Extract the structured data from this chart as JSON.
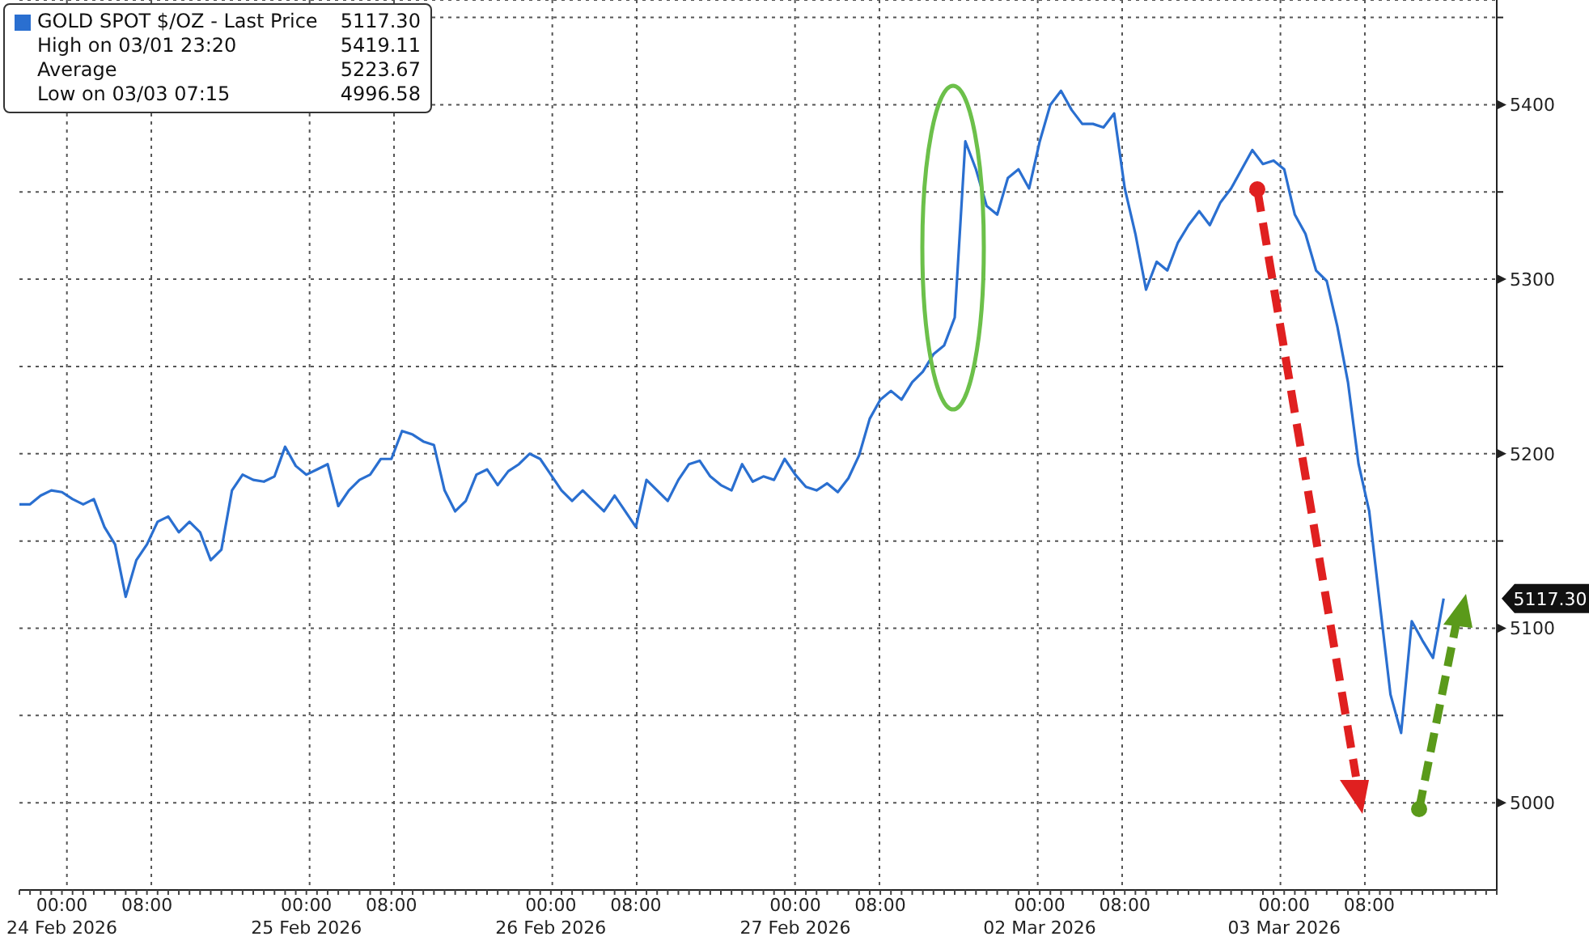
{
  "chart_data": {
    "type": "line",
    "categories": [
      null,
      null,
      null,
      null,
      "00:00\n24 Feb 2026",
      null,
      null,
      null,
      null,
      null,
      null,
      null,
      "08:00",
      null,
      null,
      null,
      null,
      null,
      null,
      null,
      null,
      null,
      null,
      null,
      null,
      null,
      null,
      "00:00\n25 Feb 2026",
      null,
      null,
      null,
      null,
      null,
      null,
      null,
      "08:00",
      null,
      null,
      null,
      null,
      null,
      null,
      null,
      null,
      null,
      null,
      null,
      null,
      null,
      null,
      "00:00\n26 Feb 2026",
      null,
      null,
      null,
      null,
      null,
      null,
      null,
      "08:00",
      null,
      null,
      null,
      null,
      null,
      null,
      null,
      null,
      null,
      null,
      null,
      null,
      null,
      null,
      "00:00\n27 Feb 2026",
      null,
      null,
      null,
      null,
      null,
      null,
      null,
      "08:00",
      null,
      null,
      null,
      null,
      null,
      null,
      null,
      null,
      null,
      null,
      null,
      null,
      null,
      null,
      "00:00\n02 Mar 2026",
      null,
      null,
      null,
      null,
      null,
      null,
      null,
      "08:00",
      null,
      null,
      null,
      null,
      null,
      null,
      null,
      null,
      null,
      null,
      null,
      null,
      null,
      null,
      "00:00\n03 Mar 2026",
      null,
      null,
      null,
      null,
      null,
      null,
      null,
      "08:00",
      null,
      null,
      null,
      null,
      null,
      null,
      null,
      null,
      null,
      null,
      null,
      null
    ],
    "series": [
      {
        "name": "GOLD SPOT $/OZ - Last Price",
        "color": "#2a6fd0",
        "values": [
          5171,
          5171,
          5176,
          5179,
          5178,
          5174,
          5171,
          5174,
          5158,
          5148,
          5118,
          5139,
          5148,
          5161,
          5164,
          5155,
          5161,
          5155,
          5139,
          5145,
          5179,
          5188,
          5185,
          5184,
          5187,
          5204,
          5193,
          5188,
          5191,
          5194,
          5170,
          5179,
          5185,
          5188,
          5197,
          5197,
          5213,
          5211,
          5207,
          5205,
          5179,
          5167,
          5173,
          5188,
          5191,
          5182,
          5190,
          5194,
          5200,
          5197,
          5188,
          5179,
          5173,
          5179,
          5173,
          5167,
          5176,
          5167,
          5158,
          5185,
          5179,
          5173,
          5185,
          5194,
          5196,
          5187,
          5182,
          5179,
          5194,
          5184,
          5187,
          5185,
          5197,
          5188,
          5181,
          5179,
          5183,
          5178,
          5186,
          5199,
          5220,
          5231,
          5236,
          5231,
          5241,
          5247,
          5257,
          5262,
          5278,
          5379,
          5363,
          5342,
          5337,
          5358,
          5363,
          5352,
          5379,
          5400,
          5408,
          5397,
          5389,
          5389,
          5387,
          5395,
          5352,
          5326,
          5294,
          5310,
          5305,
          5321,
          5331,
          5339,
          5331,
          5344,
          5352,
          5363,
          5374,
          5366,
          5368,
          5363,
          5337,
          5326,
          5305,
          5299,
          5273,
          5241,
          5194,
          5167,
          5114,
          5062,
          5040,
          5104,
          5093,
          5083,
          5117,
          null,
          null,
          null,
          null,
          null
        ]
      }
    ],
    "ylim": [
      4950,
      5460
    ],
    "yticks": [
      5000,
      {
        "value": 5050,
        "label": null
      },
      5100,
      {
        "value": 5150,
        "label": null
      },
      5200,
      {
        "value": 5250,
        "label": null
      },
      5300,
      {
        "value": 5350,
        "label": null
      },
      5400,
      {
        "value": 5450,
        "label": null
      }
    ],
    "grid": true,
    "legend": "top left",
    "marker": "none",
    "line_style": "solid",
    "annotations": [
      "5117.30",
      "High on 03/01 23:20",
      "5419.11",
      "Average",
      "5223.67",
      "Low on 03/03 07:15",
      "4996.58"
    ]
  }
}
